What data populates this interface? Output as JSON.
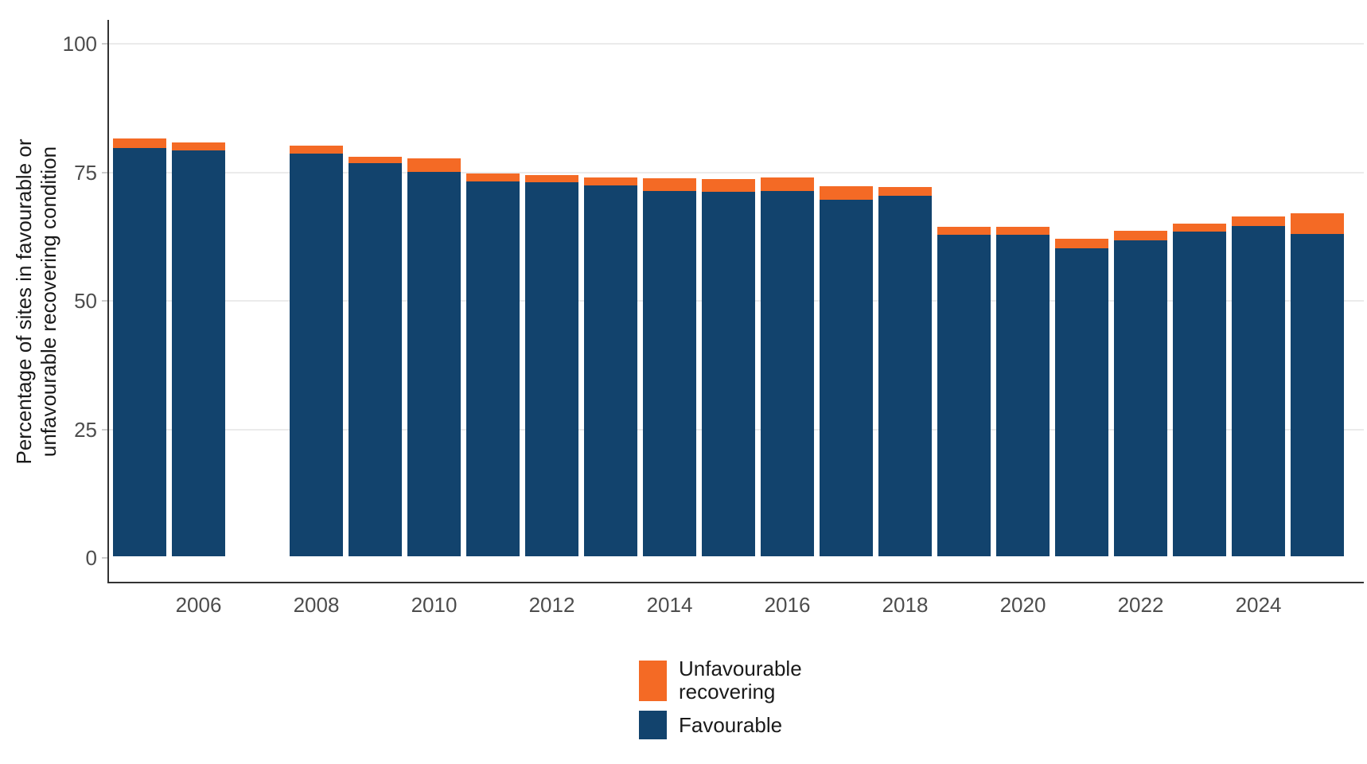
{
  "chart_data": {
    "type": "bar",
    "stacked": true,
    "orientation": "vertical",
    "title": "",
    "xlabel": "",
    "ylabel": "Percentage of sites in favourable or unfavourable recovering condition",
    "ylabel_lines": [
      "Percentage of sites in favourable or",
      "unfavourable recovering condition"
    ],
    "years": [
      2005,
      2006,
      2007,
      2008,
      2009,
      2010,
      2011,
      2012,
      2013,
      2014,
      2015,
      2016,
      2017,
      2018,
      2019,
      2020,
      2021,
      2022,
      2023,
      2024,
      2025
    ],
    "missing_years": [
      2007
    ],
    "x_axis_tick_years": [
      "2006",
      "2008",
      "2010",
      "2012",
      "2014",
      "2016",
      "2018",
      "2020",
      "2022",
      "2024"
    ],
    "y_ticks": [
      "0",
      "25",
      "50",
      "75",
      "100"
    ],
    "ylim": [
      0,
      100
    ],
    "grid": "horizontal gridlines at 25, 50, 75, 100",
    "legend_position": "bottom-center",
    "series": [
      {
        "name": "Unfavourable recovering",
        "color": "#F46A25",
        "values": [
          1.8,
          1.5,
          null,
          1.6,
          1.2,
          2.6,
          1.6,
          1.4,
          1.5,
          2.5,
          2.4,
          2.7,
          2.7,
          1.7,
          1.6,
          1.6,
          1.8,
          1.9,
          1.6,
          1.8,
          4.1
        ]
      },
      {
        "name": "Favourable",
        "color": "#12436D",
        "values": [
          79.4,
          79.0,
          null,
          78.4,
          76.5,
          74.7,
          72.9,
          72.8,
          72.2,
          71.1,
          70.9,
          71.0,
          69.4,
          70.2,
          62.5,
          62.5,
          59.9,
          61.5,
          63.1,
          64.3,
          62.7
        ]
      }
    ]
  },
  "style_colors": {
    "background": "#ffffff",
    "gridline": "#ebebeb",
    "axis_line": "#333333",
    "tick_label": "#4d4d4d",
    "tick_mark": "#cccccc",
    "text": "#1a1a1a"
  }
}
